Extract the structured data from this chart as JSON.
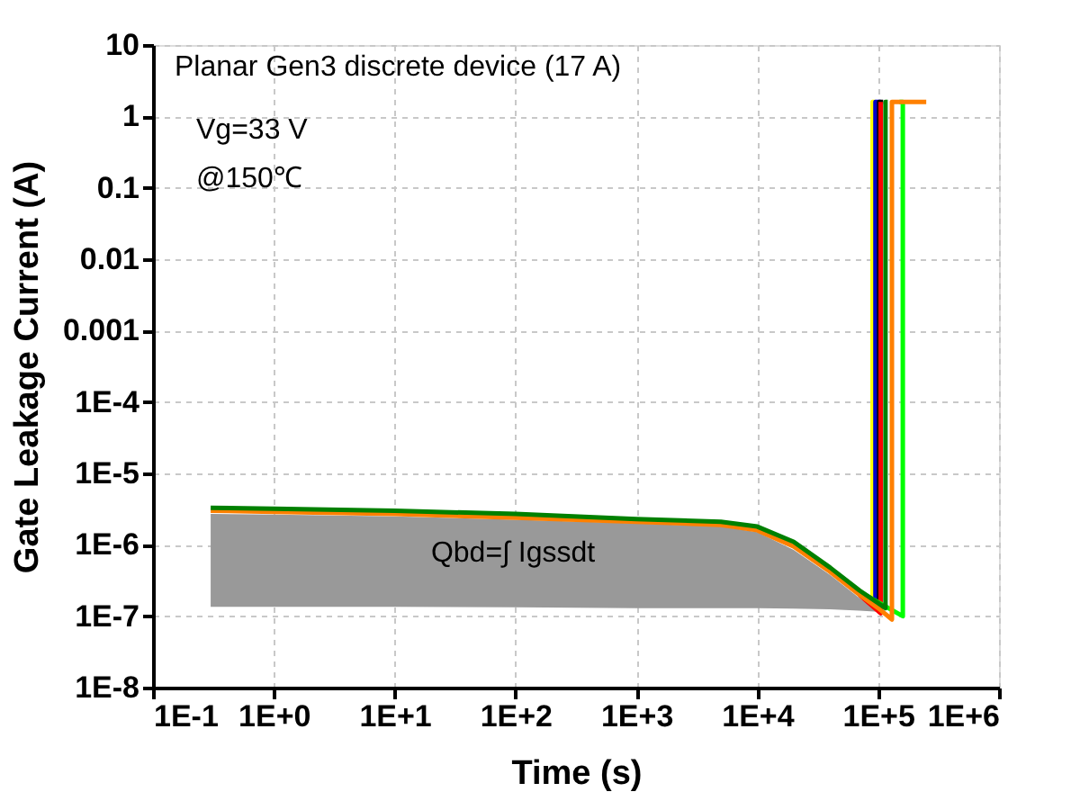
{
  "chart_data": {
    "type": "line",
    "xlabel": "Time (s)",
    "ylabel": "Gate Leakage Current (A)",
    "log": "xy",
    "grid": true,
    "line_style": "solid",
    "marker": "none",
    "xlim": [
      0.1,
      1000000
    ],
    "ylim": [
      1e-08,
      10
    ],
    "xticks": [
      {
        "value": 0.1,
        "label": "1E-1"
      },
      {
        "value": 1,
        "label": "1E+0"
      },
      {
        "value": 10,
        "label": "1E+1"
      },
      {
        "value": 100,
        "label": "1E+2"
      },
      {
        "value": 1000,
        "label": "1E+3"
      },
      {
        "value": 10000,
        "label": "1E+4"
      },
      {
        "value": 100000,
        "label": "1E+5"
      },
      {
        "value": 1000000,
        "label": "1E+6"
      }
    ],
    "yticks": [
      {
        "value": 1e-08,
        "label": "1E-8"
      },
      {
        "value": 1e-07,
        "label": "1E-7"
      },
      {
        "value": 1e-06,
        "label": "1E-6"
      },
      {
        "value": 1e-05,
        "label": "1E-5"
      },
      {
        "value": 0.0001,
        "label": "1E-4"
      },
      0.001,
      0.01,
      0.1,
      1,
      10
    ],
    "annotations": [
      "Planar Gen3 discrete device (17 A)",
      "Vg=33 V",
      "@150℃",
      "Qbd=∫ Igssdt"
    ],
    "series": [
      {
        "color": "#ffff00",
        "x": [
          90000,
          90000,
          95000
        ],
        "values": [
          1.4e-07,
          1.6,
          1.6
        ]
      },
      {
        "color": "#0000cc",
        "x": [
          95000,
          95000,
          105000
        ],
        "values": [
          1.5e-07,
          1.6,
          1.6
        ]
      },
      {
        "color": "#000000",
        "x": [
          102000,
          102000,
          110000
        ],
        "values": [
          1.2e-07,
          1.6,
          1.6
        ]
      },
      {
        "color": "#ff0000",
        "x": [
          70000,
          105000,
          105000
        ],
        "values": [
          2e-07,
          1.1e-07,
          1.6
        ]
      },
      {
        "color": "#00ff00",
        "x": [
          70000,
          160000,
          160000,
          150000
        ],
        "values": [
          2.2e-07,
          1e-07,
          1.6,
          1.6
        ]
      },
      {
        "color": "#ff8000",
        "x": [
          0.3,
          1,
          10,
          100,
          1000,
          5000,
          10000,
          20000,
          40000,
          70000,
          100000,
          130000,
          130000,
          250000
        ],
        "values": [
          3e-06,
          2.9e-06,
          2.7e-06,
          2.4e-06,
          2.1e-06,
          1.9e-06,
          1.6e-06,
          9.5e-07,
          4.2e-07,
          2e-07,
          1.3e-07,
          9e-08,
          1.6,
          1.6
        ],
        "upper": [
          2.7e-06,
          2.65e-06,
          2.5e-06,
          2.25e-06,
          2e-06,
          1.8e-06,
          1.5e-06,
          8.5e-07,
          3.8e-07,
          1.8e-07,
          1.2e-07,
          null,
          null,
          null
        ],
        "lower": [
          1.35e-07,
          1.35e-07,
          1.35e-07,
          1.33e-07,
          1.3e-07,
          1.3e-07,
          1.3e-07,
          1.28e-07,
          1.25e-07,
          1.2e-07,
          1.15e-07,
          null,
          null,
          null
        ]
      },
      {
        "color": "#008000",
        "x": [
          0.3,
          1,
          10,
          100,
          1000,
          5000,
          10000,
          20000,
          40000,
          70000,
          115000,
          115000,
          120000
        ],
        "values": [
          3.3e-06,
          3.2e-06,
          3e-06,
          2.7e-06,
          2.3e-06,
          2.1e-06,
          1.8e-06,
          1.1e-06,
          4.8e-07,
          2.3e-07,
          1.3e-07,
          1.6,
          1.6
        ]
      }
    ]
  }
}
